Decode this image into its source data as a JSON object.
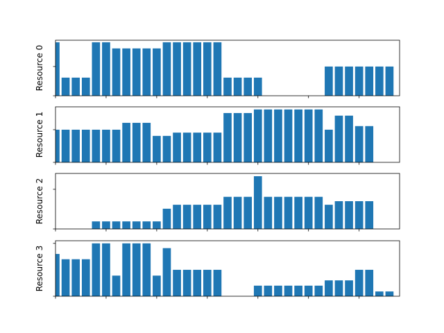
{
  "chart_data": [
    {
      "type": "bar",
      "y_label": "Resource 0",
      "color": "#1f77b4",
      "x": [
        0,
        1,
        2,
        3,
        4,
        5,
        6,
        7,
        8,
        9,
        10,
        11,
        12,
        13,
        14,
        15,
        16,
        17,
        18,
        19,
        20,
        21,
        22,
        23,
        24,
        25,
        26,
        27,
        28,
        29,
        30,
        31,
        32,
        33
      ],
      "values": [
        1.83,
        0.62,
        0.62,
        0.62,
        1.83,
        1.83,
        1.62,
        1.62,
        1.62,
        1.62,
        1.62,
        1.83,
        1.83,
        1.83,
        1.83,
        1.83,
        1.83,
        0.62,
        0.62,
        0.62,
        0.62,
        0,
        0,
        0,
        0,
        0,
        0,
        1.0,
        1.0,
        1.0,
        1.0,
        1.0,
        1.0,
        1.0
      ],
      "xlim": [
        0,
        34
      ],
      "xticks": [
        0,
        5,
        10,
        15,
        20,
        25,
        30
      ],
      "ylim": [
        0,
        1.9
      ],
      "yticks": [
        0,
        1
      ]
    },
    {
      "type": "bar",
      "y_label": "Resource 1",
      "color": "#1f77b4",
      "x": [
        0,
        1,
        2,
        3,
        4,
        5,
        6,
        7,
        8,
        9,
        10,
        11,
        12,
        13,
        14,
        15,
        16,
        17,
        18,
        19,
        20,
        21,
        22,
        23,
        24,
        25,
        26,
        27,
        28,
        29,
        30,
        31,
        32,
        33
      ],
      "values": [
        1.0,
        1.0,
        1.0,
        1.0,
        1.0,
        1.0,
        1.0,
        1.21,
        1.21,
        1.21,
        0.81,
        0.81,
        0.91,
        0.91,
        0.91,
        0.91,
        0.91,
        1.51,
        1.51,
        1.51,
        1.62,
        1.62,
        1.62,
        1.62,
        1.62,
        1.62,
        1.62,
        1.0,
        1.43,
        1.43,
        1.11,
        1.11,
        0,
        0
      ],
      "xlim": [
        0,
        34
      ],
      "xticks": [
        0,
        5,
        10,
        15,
        20,
        25,
        30
      ],
      "ylim": [
        0,
        1.7
      ],
      "yticks": [
        0,
        1
      ]
    },
    {
      "type": "bar",
      "y_label": "Resource 2",
      "color": "#1f77b4",
      "x": [
        0,
        1,
        2,
        3,
        4,
        5,
        6,
        7,
        8,
        9,
        10,
        11,
        12,
        13,
        14,
        15,
        16,
        17,
        18,
        19,
        20,
        21,
        22,
        23,
        24,
        25,
        26,
        27,
        28,
        29,
        30,
        31,
        32,
        33
      ],
      "values": [
        0,
        0,
        0,
        0,
        0.19,
        0.19,
        0.19,
        0.19,
        0.19,
        0.19,
        0.19,
        0.51,
        0.61,
        0.61,
        0.61,
        0.61,
        0.61,
        0.81,
        0.81,
        0.81,
        1.33,
        0.81,
        0.81,
        0.81,
        0.81,
        0.81,
        0.81,
        0.61,
        0.7,
        0.7,
        0.7,
        0.7,
        0,
        0
      ],
      "xlim": [
        0,
        34
      ],
      "xticks": [
        0,
        5,
        10,
        15,
        20,
        25,
        30
      ],
      "ylim": [
        0,
        1.4
      ],
      "yticks": [
        0,
        1
      ]
    },
    {
      "type": "bar",
      "y_label": "Resource 3",
      "color": "#1f77b4",
      "x": [
        0,
        1,
        2,
        3,
        4,
        5,
        6,
        7,
        8,
        9,
        10,
        11,
        12,
        13,
        14,
        15,
        16,
        17,
        18,
        19,
        20,
        21,
        22,
        23,
        24,
        25,
        26,
        27,
        28,
        29,
        30,
        31,
        32,
        33
      ],
      "values": [
        0.8,
        0.7,
        0.7,
        0.7,
        1.0,
        1.0,
        0.39,
        1.0,
        1.0,
        1.0,
        0.39,
        0.91,
        0.5,
        0.5,
        0.5,
        0.5,
        0.5,
        0,
        0,
        0,
        0.2,
        0.2,
        0.2,
        0.2,
        0.2,
        0.2,
        0.2,
        0.3,
        0.3,
        0.3,
        0.5,
        0.5,
        0.09,
        0.09
      ],
      "xlim": [
        0,
        34
      ],
      "xticks": [
        0,
        5,
        10,
        15,
        20,
        25,
        30
      ],
      "ylim": [
        0,
        1.05
      ],
      "yticks": [
        0,
        1
      ]
    }
  ]
}
